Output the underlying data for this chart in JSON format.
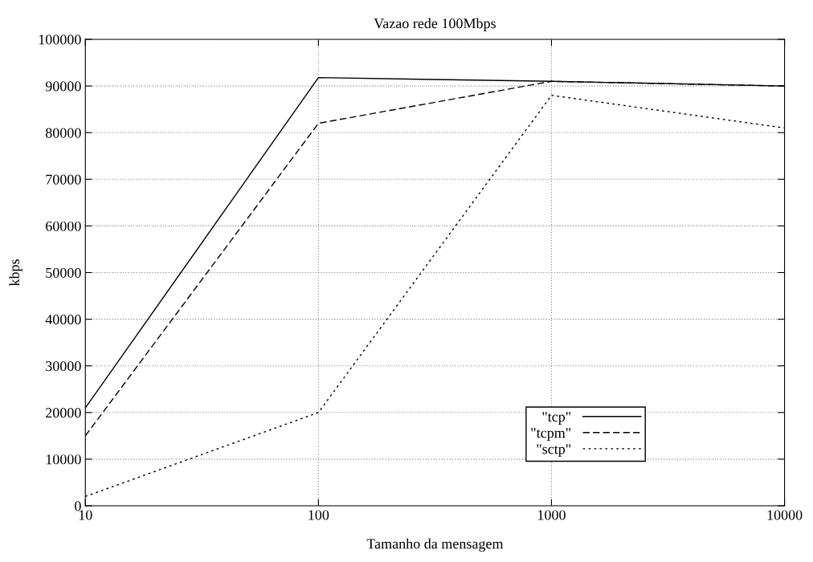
{
  "chart_data": {
    "type": "line",
    "title": "Vazao rede 100Mbps",
    "xlabel": "Tamanho da mensagem",
    "ylabel": "kbps",
    "x": [
      10,
      100,
      1000,
      10000
    ],
    "series": [
      {
        "name": "\"tcp\"",
        "color": "#000000",
        "line_style": "solid",
        "values": [
          21000,
          91800,
          91000,
          90000
        ]
      },
      {
        "name": "\"tcpm\"",
        "color": "#000000",
        "line_style": "dashed",
        "values": [
          15000,
          82000,
          91000,
          90000
        ]
      },
      {
        "name": "\"sctp\"",
        "color": "#000000",
        "line_style": "dotted",
        "values": [
          2000,
          20000,
          88000,
          81000
        ]
      }
    ],
    "log": "x",
    "xlim": [
      10,
      10000
    ],
    "xticks": [
      10,
      100,
      1000,
      10000
    ],
    "ylim": [
      0,
      100000
    ],
    "yticks": [
      0,
      10000,
      20000,
      30000,
      40000,
      50000,
      60000,
      70000,
      80000,
      90000,
      100000
    ],
    "grid": true,
    "legend": "bottom right"
  }
}
